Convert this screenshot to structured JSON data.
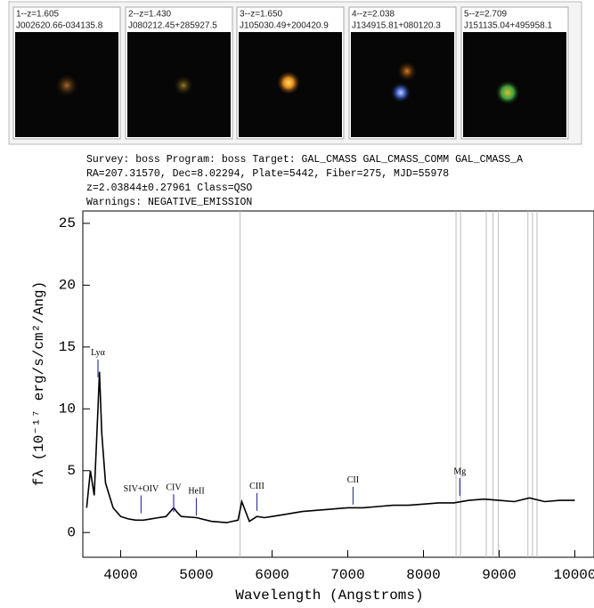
{
  "thumbnails": [
    {
      "label": "1--z=1.605",
      "name": "J002620.66-034135.8"
    },
    {
      "label": "2--z=1.430",
      "name": "J080212.45+285927.5"
    },
    {
      "label": "3--z=1.650",
      "name": "J105030.49+200420.9"
    },
    {
      "label": "4--z=2.038",
      "name": "J134915.81+080120.3"
    },
    {
      "label": "5--z=2.709",
      "name": "J151135.04+495958.1"
    }
  ],
  "header": [
    "Survey: boss Program: boss Target: GAL_CMASS GAL_CMASS_COMM GAL_CMASS_A",
    "RA=207.31570, Dec=8.02294, Plate=5442, Fiber=275, MJD=55978",
    "z=2.03844±0.27961 Class=QSO",
    "Warnings: NEGATIVE_EMISSION"
  ],
  "chart_data": {
    "type": "line",
    "xlabel": "Wavelength (Angstroms)",
    "ylabel": "fλ (10⁻¹⁷ erg/s/cm²/Ang)",
    "color": "#000000",
    "x": [
      3550,
      3600,
      3650,
      3700,
      3720,
      3750,
      3800,
      3900,
      4000,
      4100,
      4200,
      4300,
      4400,
      4500,
      4600,
      4700,
      4750,
      4800,
      5000,
      5200,
      5400,
      5550,
      5600,
      5700,
      5800,
      5900,
      6000,
      6200,
      6400,
      6600,
      6800,
      7000,
      7200,
      7400,
      7600,
      7800,
      8000,
      8200,
      8400,
      8600,
      8800,
      9000,
      9200,
      9400,
      9600,
      9800,
      10000
    ],
    "values": [
      2,
      5,
      3,
      10,
      13,
      8,
      4,
      2,
      1.3,
      1.1,
      1.0,
      1.0,
      1.1,
      1.2,
      1.3,
      2.0,
      1.6,
      1.3,
      1.2,
      0.9,
      0.8,
      1.0,
      2.5,
      0.9,
      1.3,
      1.2,
      1.3,
      1.5,
      1.7,
      1.8,
      1.9,
      2.0,
      2.0,
      2.1,
      2.2,
      2.2,
      2.3,
      2.4,
      2.4,
      2.6,
      2.7,
      2.6,
      2.5,
      2.8,
      2.5,
      2.6,
      2.6
    ],
    "sky_lines": [
      5577,
      8430,
      8490,
      8830,
      8920,
      8990,
      9380,
      9440,
      9500
    ],
    "annotations": [
      {
        "label": "Lyα",
        "x": 3700,
        "y": 14.5
      },
      {
        "label": "SIV+OIV",
        "x": 4270,
        "y": 3.5
      },
      {
        "label": "CIV",
        "x": 4700,
        "y": 3.6
      },
      {
        "label": "HeII",
        "x": 5000,
        "y": 3.3
      },
      {
        "label": "CIII",
        "x": 5800,
        "y": 3.7
      },
      {
        "label": "CII",
        "x": 7070,
        "y": 4.2
      },
      {
        "label": "Mg",
        "x": 8480,
        "y": 4.9
      }
    ],
    "xlim": [
      3500,
      10150
    ],
    "ylim": [
      -2,
      26
    ],
    "xticks": [
      4000,
      5000,
      6000,
      7000,
      8000,
      9000,
      10000
    ],
    "yticks": [
      0,
      5,
      10,
      15,
      20,
      25
    ]
  }
}
